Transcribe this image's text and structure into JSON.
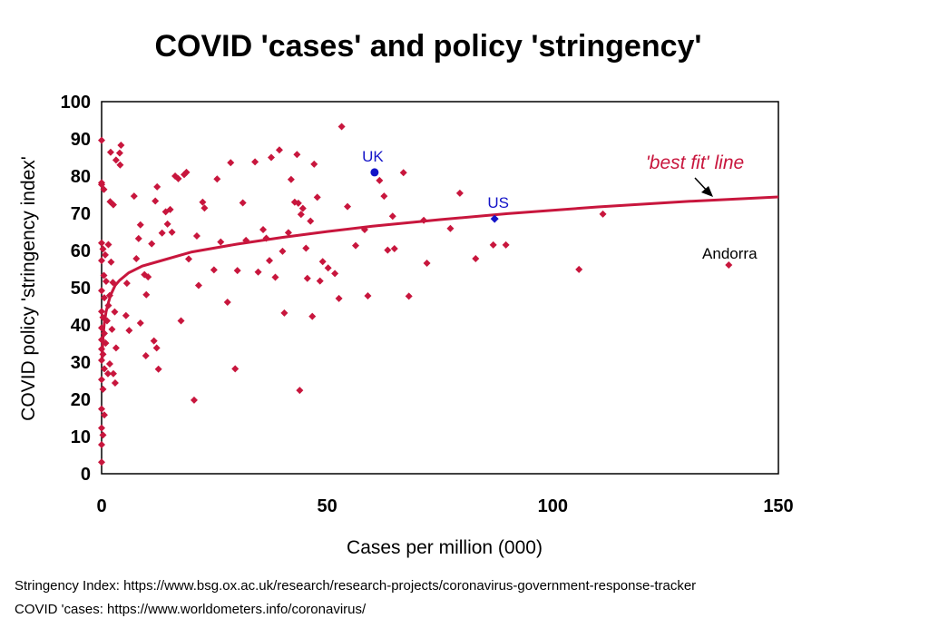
{
  "chart_data": {
    "type": "scatter",
    "title": "COVID 'cases' and policy 'stringency'",
    "xlabel": "Cases per million (000)",
    "ylabel": "COVID policy 'stringency index'",
    "xlim": [
      0,
      150
    ],
    "ylim": [
      0,
      100
    ],
    "x_ticks": [
      "0",
      "50",
      "100",
      "150"
    ],
    "y_ticks": [
      "0",
      "10",
      "20",
      "30",
      "40",
      "50",
      "60",
      "70",
      "80",
      "90",
      "100"
    ],
    "grid": false,
    "colors": {
      "points": "#c8163d",
      "highlight": "#1414c8",
      "fit_line": "#c8163d",
      "label_text": "#1414c8"
    },
    "series": [
      {
        "marker": "diamond",
        "points": [
          [
            0.0,
            89.6
          ],
          [
            0.0,
            77.7
          ],
          [
            0.0,
            78.2
          ],
          [
            0.5,
            76.4
          ],
          [
            0.0,
            62.0
          ],
          [
            0.3,
            60.4
          ],
          [
            0.8,
            58.8
          ],
          [
            0.0,
            57.3
          ],
          [
            0.5,
            53.3
          ],
          [
            1.0,
            51.7
          ],
          [
            0.0,
            49.2
          ],
          [
            0.6,
            47.3
          ],
          [
            1.5,
            45.2
          ],
          [
            0.0,
            43.6
          ],
          [
            0.3,
            42.0
          ],
          [
            1.2,
            41.1
          ],
          [
            0.0,
            39.2
          ],
          [
            0.6,
            37.7
          ],
          [
            0.0,
            36.0
          ],
          [
            0.9,
            35.1
          ],
          [
            0.0,
            33.5
          ],
          [
            0.3,
            32.1
          ],
          [
            0.0,
            30.5
          ],
          [
            0.6,
            28.2
          ],
          [
            1.4,
            26.9
          ],
          [
            0.0,
            25.3
          ],
          [
            0.3,
            22.7
          ],
          [
            0.0,
            17.4
          ],
          [
            0.6,
            15.8
          ],
          [
            0.0,
            12.3
          ],
          [
            0.3,
            10.4
          ],
          [
            0.0,
            7.8
          ],
          [
            0.0,
            3.1
          ],
          [
            1.5,
            61.6
          ],
          [
            2.1,
            56.9
          ],
          [
            2.5,
            51.4
          ],
          [
            1.8,
            47.9
          ],
          [
            2.9,
            43.5
          ],
          [
            2.3,
            38.8
          ],
          [
            3.2,
            33.8
          ],
          [
            1.8,
            29.5
          ],
          [
            2.6,
            26.9
          ],
          [
            3.0,
            24.4
          ],
          [
            1.9,
            73.1
          ],
          [
            2.6,
            72.3
          ],
          [
            2.0,
            86.4
          ],
          [
            3.2,
            84.3
          ],
          [
            4.0,
            86.2
          ],
          [
            4.3,
            88.3
          ],
          [
            4.1,
            83.0
          ],
          [
            5.6,
            51.2
          ],
          [
            5.4,
            42.5
          ],
          [
            6.1,
            38.5
          ],
          [
            7.2,
            74.6
          ],
          [
            7.7,
            57.8
          ],
          [
            8.2,
            63.2
          ],
          [
            8.6,
            66.9
          ],
          [
            8.6,
            40.5
          ],
          [
            9.5,
            53.5
          ],
          [
            9.9,
            48.1
          ],
          [
            9.8,
            31.7
          ],
          [
            10.3,
            52.9
          ],
          [
            11.1,
            61.8
          ],
          [
            11.6,
            35.7
          ],
          [
            11.9,
            73.3
          ],
          [
            12.3,
            77.1
          ],
          [
            12.2,
            33.8
          ],
          [
            12.6,
            28.1
          ],
          [
            13.4,
            64.7
          ],
          [
            14.2,
            70.4
          ],
          [
            14.6,
            67.1
          ],
          [
            15.2,
            71.0
          ],
          [
            15.6,
            64.9
          ],
          [
            16.3,
            80.0
          ],
          [
            17.0,
            79.3
          ],
          [
            17.6,
            41.1
          ],
          [
            18.3,
            80.4
          ],
          [
            18.8,
            81.0
          ],
          [
            19.3,
            57.7
          ],
          [
            20.5,
            19.8
          ],
          [
            21.1,
            63.9
          ],
          [
            21.5,
            50.6
          ],
          [
            22.4,
            73.0
          ],
          [
            22.8,
            71.4
          ],
          [
            24.9,
            54.8
          ],
          [
            25.6,
            79.2
          ],
          [
            26.4,
            62.3
          ],
          [
            27.9,
            46.1
          ],
          [
            28.6,
            83.6
          ],
          [
            29.6,
            28.2
          ],
          [
            30.1,
            54.6
          ],
          [
            31.3,
            72.8
          ],
          [
            32.0,
            62.7
          ],
          [
            34.0,
            83.8
          ],
          [
            34.7,
            54.2
          ],
          [
            35.8,
            65.6
          ],
          [
            36.5,
            63.3
          ],
          [
            37.2,
            57.3
          ],
          [
            37.6,
            85.0
          ],
          [
            38.5,
            52.8
          ],
          [
            39.4,
            87.0
          ],
          [
            40.1,
            59.8
          ],
          [
            40.5,
            43.2
          ],
          [
            41.4,
            64.8
          ],
          [
            42.0,
            79.1
          ],
          [
            42.8,
            73.0
          ],
          [
            43.3,
            85.8
          ],
          [
            43.6,
            72.7
          ],
          [
            43.9,
            22.4
          ],
          [
            44.2,
            69.7
          ],
          [
            44.6,
            71.3
          ],
          [
            45.3,
            60.6
          ],
          [
            45.6,
            52.5
          ],
          [
            46.3,
            67.9
          ],
          [
            46.7,
            42.3
          ],
          [
            47.1,
            83.2
          ],
          [
            47.8,
            74.3
          ],
          [
            48.4,
            51.8
          ],
          [
            49.0,
            57.0
          ],
          [
            50.2,
            55.3
          ],
          [
            51.7,
            53.8
          ],
          [
            52.6,
            47.1
          ],
          [
            53.2,
            93.3
          ],
          [
            54.5,
            71.8
          ],
          [
            56.3,
            61.3
          ],
          [
            58.3,
            65.6
          ],
          [
            59.0,
            47.8
          ],
          [
            61.6,
            78.8
          ],
          [
            62.6,
            74.6
          ],
          [
            63.4,
            60.1
          ],
          [
            64.5,
            69.2
          ],
          [
            64.9,
            60.5
          ],
          [
            66.9,
            80.9
          ],
          [
            68.1,
            47.7
          ],
          [
            71.4,
            68.1
          ],
          [
            72.1,
            56.6
          ],
          [
            77.3,
            65.9
          ],
          [
            79.4,
            75.4
          ],
          [
            82.9,
            57.8
          ],
          [
            86.8,
            61.5
          ],
          [
            89.6,
            61.5
          ],
          [
            105.8,
            54.9
          ],
          [
            111.1,
            69.8
          ]
        ]
      },
      {
        "name": "UK",
        "marker": "circle",
        "points": [
          [
            60.5,
            81.0
          ]
        ]
      },
      {
        "name": "US",
        "marker": "diamond",
        "points": [
          [
            87.1,
            68.5
          ]
        ]
      },
      {
        "name": "Andorra",
        "marker": "diamond",
        "points": [
          [
            139.0,
            56.1
          ]
        ]
      }
    ],
    "fit_line": {
      "label": "'best fit' line",
      "type": "logarithmic",
      "points": [
        [
          0.1,
          30.0
        ],
        [
          0.3,
          36.5
        ],
        [
          0.6,
          40.5
        ],
        [
          1.0,
          43.6
        ],
        [
          1.5,
          46.0
        ],
        [
          2.0,
          48.0
        ],
        [
          3.0,
          50.6
        ],
        [
          4.0,
          52.0
        ],
        [
          6.0,
          54.0
        ],
        [
          9.0,
          55.8
        ],
        [
          13.0,
          57.2
        ],
        [
          20.0,
          59.6
        ],
        [
          30.0,
          61.7
        ],
        [
          40.0,
          63.5
        ],
        [
          50.0,
          65.1
        ],
        [
          60.0,
          66.5
        ],
        [
          75.0,
          68.3
        ],
        [
          90.0,
          69.9
        ],
        [
          110.0,
          71.7
        ],
        [
          130.0,
          73.2
        ],
        [
          150.0,
          74.4
        ]
      ]
    },
    "annotations": [
      {
        "text": "UK",
        "color": "#1414c8"
      },
      {
        "text": "US",
        "color": "#1414c8"
      },
      {
        "text": "Andorra",
        "color": "#000000"
      },
      {
        "text": "'best fit' line",
        "color": "#c8163d"
      }
    ]
  },
  "footer": {
    "source1": "Stringency Index: https://www.bsg.ox.ac.uk/research/research-projects/coronavirus-government-response-tracker",
    "source2": " COVID 'cases: https://www.worldometers.info/coronavirus/"
  }
}
